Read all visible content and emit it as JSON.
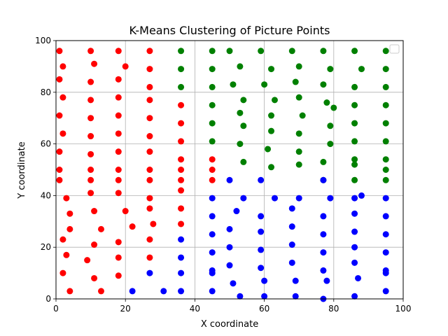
{
  "chart_data": {
    "type": "scatter",
    "title": "K-Means Clustering of Picture Points",
    "xlabel": "X coordinate",
    "ylabel": "Y coordinate",
    "xlim": [
      0,
      100
    ],
    "ylim": [
      0,
      100
    ],
    "xticks": [
      0,
      20,
      40,
      60,
      80,
      100
    ],
    "yticks": [
      0,
      20,
      40,
      60,
      80,
      100
    ],
    "grid": true,
    "legend": "top-right (empty)",
    "series": [
      {
        "color": "#ff0000",
        "points": [
          [
            1,
            96
          ],
          [
            2,
            90
          ],
          [
            1,
            85
          ],
          [
            2,
            78
          ],
          [
            1,
            71
          ],
          [
            2,
            64
          ],
          [
            1,
            57
          ],
          [
            1,
            50
          ],
          [
            1,
            46
          ],
          [
            3,
            39
          ],
          [
            4,
            33
          ],
          [
            4,
            27
          ],
          [
            2,
            23
          ],
          [
            3,
            17
          ],
          [
            2,
            10
          ],
          [
            4,
            3
          ],
          [
            10,
            96
          ],
          [
            11,
            91
          ],
          [
            10,
            84
          ],
          [
            10,
            77
          ],
          [
            10,
            70
          ],
          [
            10,
            63
          ],
          [
            10,
            56
          ],
          [
            10,
            50
          ],
          [
            10,
            46
          ],
          [
            10,
            41
          ],
          [
            11,
            34
          ],
          [
            13,
            27
          ],
          [
            11,
            21
          ],
          [
            9,
            15
          ],
          [
            11,
            8
          ],
          [
            13,
            3
          ],
          [
            18,
            96
          ],
          [
            18,
            85
          ],
          [
            18,
            78
          ],
          [
            18,
            71
          ],
          [
            18,
            64
          ],
          [
            18,
            57
          ],
          [
            18,
            50
          ],
          [
            18,
            46
          ],
          [
            18,
            41
          ],
          [
            20,
            34
          ],
          [
            18,
            22
          ],
          [
            18,
            16
          ],
          [
            18,
            9
          ],
          [
            20,
            90
          ],
          [
            22,
            28
          ],
          [
            27,
            96
          ],
          [
            27,
            89
          ],
          [
            27,
            82
          ],
          [
            27,
            77
          ],
          [
            27,
            70
          ],
          [
            27,
            63
          ],
          [
            27,
            57
          ],
          [
            27,
            50
          ],
          [
            27,
            46
          ],
          [
            27,
            39
          ],
          [
            27,
            35
          ],
          [
            28,
            29
          ],
          [
            27,
            23
          ],
          [
            27,
            16
          ],
          [
            36,
            75
          ],
          [
            36,
            68
          ],
          [
            36,
            61
          ],
          [
            36,
            54
          ],
          [
            36,
            50
          ],
          [
            36,
            46
          ],
          [
            36,
            42
          ],
          [
            36,
            35
          ],
          [
            36,
            29
          ],
          [
            45,
            54
          ],
          [
            45,
            50
          ],
          [
            45,
            46
          ]
        ]
      },
      {
        "color": "#008000",
        "points": [
          [
            36,
            96
          ],
          [
            36,
            89
          ],
          [
            36,
            82
          ],
          [
            45,
            96
          ],
          [
            45,
            89
          ],
          [
            45,
            82
          ],
          [
            45,
            75
          ],
          [
            45,
            68
          ],
          [
            45,
            61
          ],
          [
            50,
            96
          ],
          [
            53,
            90
          ],
          [
            51,
            83
          ],
          [
            54,
            77
          ],
          [
            53,
            72
          ],
          [
            54,
            67
          ],
          [
            53,
            60
          ],
          [
            54,
            53
          ],
          [
            59,
            96
          ],
          [
            62,
            89
          ],
          [
            60,
            83
          ],
          [
            63,
            77
          ],
          [
            62,
            71
          ],
          [
            62,
            65
          ],
          [
            61,
            58
          ],
          [
            62,
            51
          ],
          [
            68,
            96
          ],
          [
            70,
            90
          ],
          [
            69,
            84
          ],
          [
            70,
            78
          ],
          [
            71,
            71
          ],
          [
            70,
            64
          ],
          [
            70,
            57
          ],
          [
            70,
            52
          ],
          [
            77,
            96
          ],
          [
            79,
            89
          ],
          [
            77,
            83
          ],
          [
            78,
            76
          ],
          [
            80,
            74
          ],
          [
            79,
            67
          ],
          [
            79,
            60
          ],
          [
            77,
            53
          ],
          [
            77,
            46
          ],
          [
            86,
            96
          ],
          [
            88,
            89
          ],
          [
            86,
            82
          ],
          [
            86,
            75
          ],
          [
            86,
            68
          ],
          [
            86,
            61
          ],
          [
            86,
            54
          ],
          [
            86,
            52
          ],
          [
            86,
            46
          ],
          [
            95,
            96
          ],
          [
            95,
            89
          ],
          [
            95,
            82
          ],
          [
            95,
            75
          ],
          [
            95,
            68
          ],
          [
            95,
            61
          ],
          [
            95,
            54
          ],
          [
            95,
            50
          ],
          [
            95,
            46
          ]
        ]
      },
      {
        "color": "#0000ff",
        "points": [
          [
            22,
            3
          ],
          [
            27,
            10
          ],
          [
            31,
            3
          ],
          [
            36,
            23
          ],
          [
            36,
            16
          ],
          [
            36,
            10
          ],
          [
            36,
            3
          ],
          [
            45,
            39
          ],
          [
            45,
            32
          ],
          [
            45,
            25
          ],
          [
            45,
            18
          ],
          [
            45,
            11
          ],
          [
            45,
            10
          ],
          [
            45,
            3
          ],
          [
            50,
            46
          ],
          [
            52,
            34
          ],
          [
            50,
            27
          ],
          [
            50,
            20
          ],
          [
            50,
            13
          ],
          [
            51,
            6
          ],
          [
            54,
            39
          ],
          [
            53,
            1
          ],
          [
            59,
            46
          ],
          [
            59,
            32
          ],
          [
            59,
            26
          ],
          [
            59,
            19
          ],
          [
            59,
            12
          ],
          [
            60,
            7
          ],
          [
            60,
            1
          ],
          [
            63,
            39
          ],
          [
            68,
            35
          ],
          [
            68,
            28
          ],
          [
            68,
            21
          ],
          [
            68,
            14
          ],
          [
            69,
            7
          ],
          [
            69,
            1
          ],
          [
            70,
            39
          ],
          [
            77,
            46
          ],
          [
            77,
            32
          ],
          [
            77,
            25
          ],
          [
            77,
            18
          ],
          [
            77,
            11
          ],
          [
            78,
            7
          ],
          [
            77,
            0
          ],
          [
            79,
            39
          ],
          [
            86,
            39
          ],
          [
            86,
            33
          ],
          [
            86,
            26
          ],
          [
            86,
            20
          ],
          [
            86,
            14
          ],
          [
            87,
            8
          ],
          [
            86,
            1
          ],
          [
            88,
            40
          ],
          [
            95,
            39
          ],
          [
            95,
            32
          ],
          [
            95,
            25
          ],
          [
            95,
            18
          ],
          [
            95,
            11
          ],
          [
            95,
            10
          ],
          [
            95,
            3
          ]
        ]
      }
    ]
  }
}
